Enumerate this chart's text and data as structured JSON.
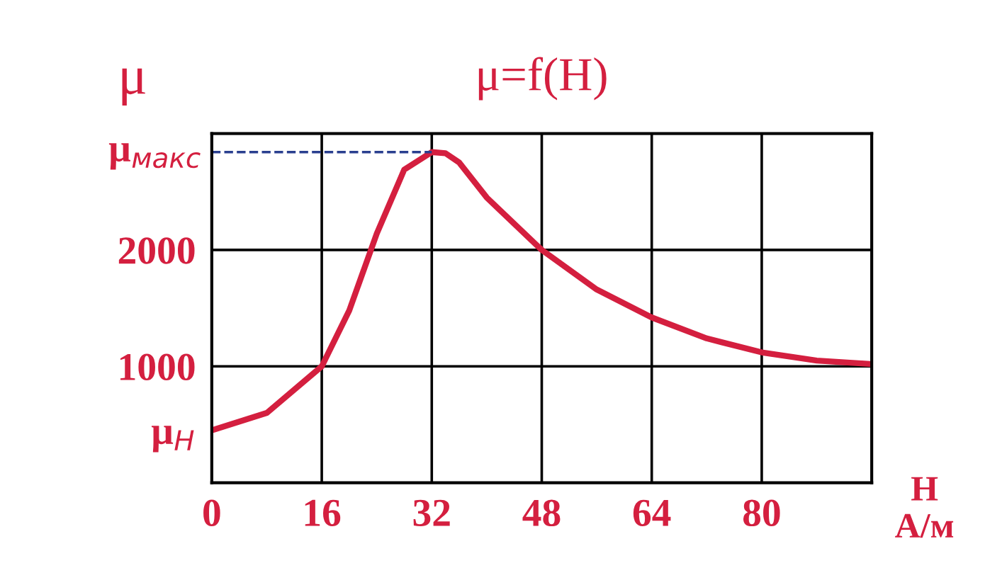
{
  "chart_data": {
    "type": "line",
    "title": "μ=f(H)",
    "xlabel": "H\nА/м",
    "ylabel": "μ",
    "x": [
      0,
      8,
      16,
      20,
      24,
      28,
      32,
      34,
      36,
      40,
      48,
      56,
      64,
      72,
      80,
      88,
      96
    ],
    "series": [
      {
        "color": "#d41f3f",
        "values": [
          450,
          600,
          1000,
          1480,
          2140,
          2690,
          2840,
          2830,
          2750,
          2450,
          2000,
          1660,
          1420,
          1240,
          1120,
          1050,
          1020
        ]
      }
    ],
    "xlim": [
      0,
      96
    ],
    "xticks": [
      0,
      16,
      32,
      48,
      64,
      80
    ],
    "ylim": [
      0,
      3000
    ],
    "yticks": [
      {
        "value": 450,
        "label": "μ$_{H}$"
      },
      1000,
      2000,
      {
        "value": 3000,
        "label": null
      }
    ],
    "ref_lines": [
      {
        "axis": "y",
        "value": 2840,
        "label": "μ$_{макс}$",
        "color": "#2a3f8f",
        "line_style": "dashed"
      }
    ],
    "grid": true,
    "marker": "none",
    "line_style": "solid"
  }
}
